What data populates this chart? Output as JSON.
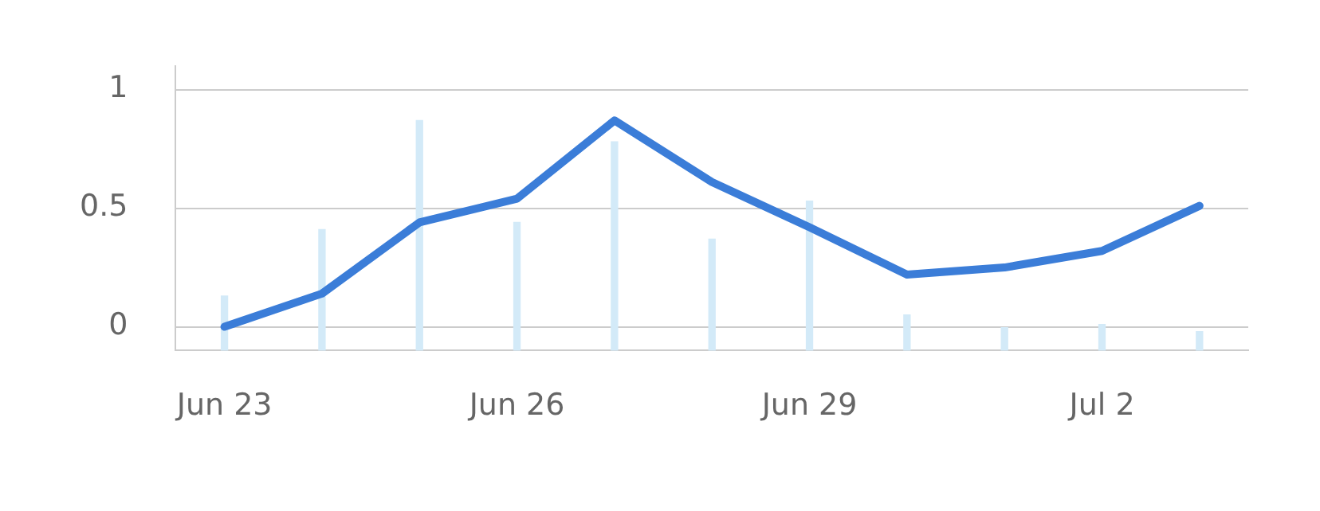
{
  "chart_data": {
    "type": "line",
    "categories": [
      "Jun 23",
      null,
      null,
      "Jun 26",
      null,
      null,
      "Jun 29",
      null,
      null,
      "Jul 2",
      null
    ],
    "ylim": [
      -0.1,
      1.1
    ],
    "yticks": [
      0,
      0.5,
      1
    ],
    "grid": "y",
    "marker": "none",
    "series": [
      {
        "type": "bar",
        "color": "#d3eaf8",
        "base": [
          -0.1,
          -0.1,
          -0.1,
          -0.1,
          -0.1,
          -0.1,
          -0.1,
          -0.1,
          -0.1,
          -0.1,
          -0.1
        ],
        "values": [
          0.23,
          0.51,
          0.97,
          0.54,
          0.88,
          0.47,
          0.63,
          0.15,
          0.1,
          0.11,
          0.08
        ]
      },
      {
        "color": "#3b7dd8",
        "values": [
          0,
          0.14,
          0.44,
          0.54,
          0.87,
          0.61,
          0.42,
          0.22,
          0.25,
          0.32,
          0.51
        ]
      }
    ]
  }
}
